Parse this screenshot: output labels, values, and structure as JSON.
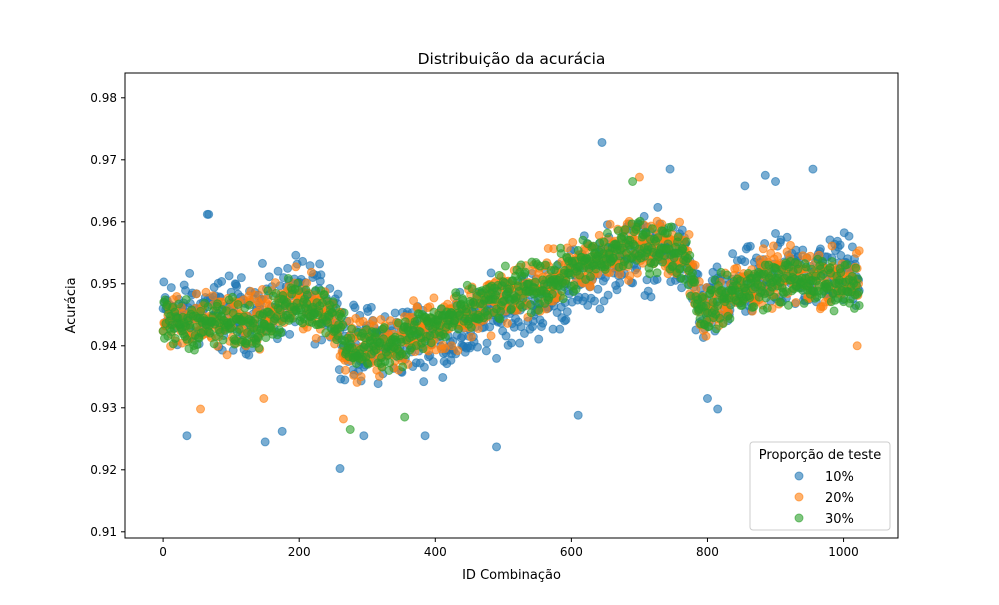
{
  "chart_data": {
    "type": "scatter",
    "title": "Distribuição da acurácia",
    "xlabel": "ID Combinação",
    "ylabel": "Acurácia",
    "xlim": [
      -56,
      1080
    ],
    "ylim": [
      0.909,
      0.984
    ],
    "xticks": [
      0,
      200,
      400,
      600,
      800,
      1000
    ],
    "xtick_labels": [
      "0",
      "200",
      "400",
      "600",
      "800",
      "1000"
    ],
    "yticks": [
      0.91,
      0.92,
      0.93,
      0.94,
      0.95,
      0.96,
      0.97,
      0.98
    ],
    "ytick_labels": [
      "0.91",
      "0.92",
      "0.93",
      "0.94",
      "0.95",
      "0.96",
      "0.97",
      "0.98"
    ],
    "grid": false,
    "legend": {
      "title": "Proporção de teste",
      "placement": "lower-right"
    },
    "marker_alpha": 0.6,
    "n_combinations": 1024,
    "series": [
      {
        "name": "10%",
        "color": "#1f77b4",
        "profile": [
          [
            0,
            0.9455
          ],
          [
            130,
            0.945
          ],
          [
            200,
            0.948
          ],
          [
            250,
            0.946
          ],
          [
            270,
            0.94
          ],
          [
            330,
            0.9405
          ],
          [
            380,
            0.9415
          ],
          [
            440,
            0.942
          ],
          [
            500,
            0.946
          ],
          [
            560,
            0.947
          ],
          [
            620,
            0.9515
          ],
          [
            680,
            0.955
          ],
          [
            740,
            0.955
          ],
          [
            770,
            0.953
          ],
          [
            790,
            0.945
          ],
          [
            840,
            0.949
          ],
          [
            900,
            0.951
          ],
          [
            1000,
            0.9525
          ],
          [
            1023,
            0.952
          ]
        ],
        "spread": 0.0085,
        "outliers": [
          [
            645,
            0.9728
          ],
          [
            745,
            0.9685
          ],
          [
            955,
            0.9685
          ],
          [
            885,
            0.9675
          ],
          [
            900,
            0.9665
          ],
          [
            65,
            0.9612
          ],
          [
            67,
            0.9612
          ],
          [
            260,
            0.9202
          ],
          [
            490,
            0.9237
          ],
          [
            150,
            0.9245
          ],
          [
            35,
            0.9255
          ],
          [
            175,
            0.9262
          ],
          [
            295,
            0.9255
          ],
          [
            385,
            0.9255
          ],
          [
            610,
            0.9288
          ],
          [
            800,
            0.9315
          ],
          [
            815,
            0.9298
          ],
          [
            855,
            0.9658
          ]
        ]
      },
      {
        "name": "20%",
        "color": "#ff7f0e",
        "profile": [
          [
            0,
            0.944
          ],
          [
            130,
            0.944
          ],
          [
            200,
            0.9475
          ],
          [
            250,
            0.945
          ],
          [
            270,
            0.9395
          ],
          [
            330,
            0.94
          ],
          [
            380,
            0.9425
          ],
          [
            440,
            0.945
          ],
          [
            500,
            0.948
          ],
          [
            560,
            0.95
          ],
          [
            620,
            0.953
          ],
          [
            680,
            0.956
          ],
          [
            740,
            0.956
          ],
          [
            770,
            0.9545
          ],
          [
            790,
            0.9455
          ],
          [
            840,
            0.949
          ],
          [
            900,
            0.951
          ],
          [
            1000,
            0.951
          ],
          [
            1023,
            0.9505
          ]
        ],
        "spread": 0.0065,
        "outliers": [
          [
            55,
            0.9298
          ],
          [
            148,
            0.9315
          ],
          [
            265,
            0.9282
          ],
          [
            700,
            0.9672
          ],
          [
            1020,
            0.94
          ]
        ]
      },
      {
        "name": "30%",
        "color": "#2ca02c",
        "profile": [
          [
            0,
            0.9435
          ],
          [
            130,
            0.9435
          ],
          [
            200,
            0.947
          ],
          [
            250,
            0.9455
          ],
          [
            270,
            0.9395
          ],
          [
            330,
            0.94
          ],
          [
            380,
            0.9425
          ],
          [
            440,
            0.945
          ],
          [
            500,
            0.948
          ],
          [
            560,
            0.95
          ],
          [
            620,
            0.953
          ],
          [
            680,
            0.956
          ],
          [
            740,
            0.956
          ],
          [
            770,
            0.954
          ],
          [
            790,
            0.9455
          ],
          [
            840,
            0.9485
          ],
          [
            900,
            0.9505
          ],
          [
            1000,
            0.95
          ],
          [
            1023,
            0.95
          ]
        ],
        "spread": 0.0055,
        "outliers": [
          [
            275,
            0.9265
          ],
          [
            355,
            0.9285
          ],
          [
            690,
            0.9665
          ]
        ]
      }
    ]
  }
}
